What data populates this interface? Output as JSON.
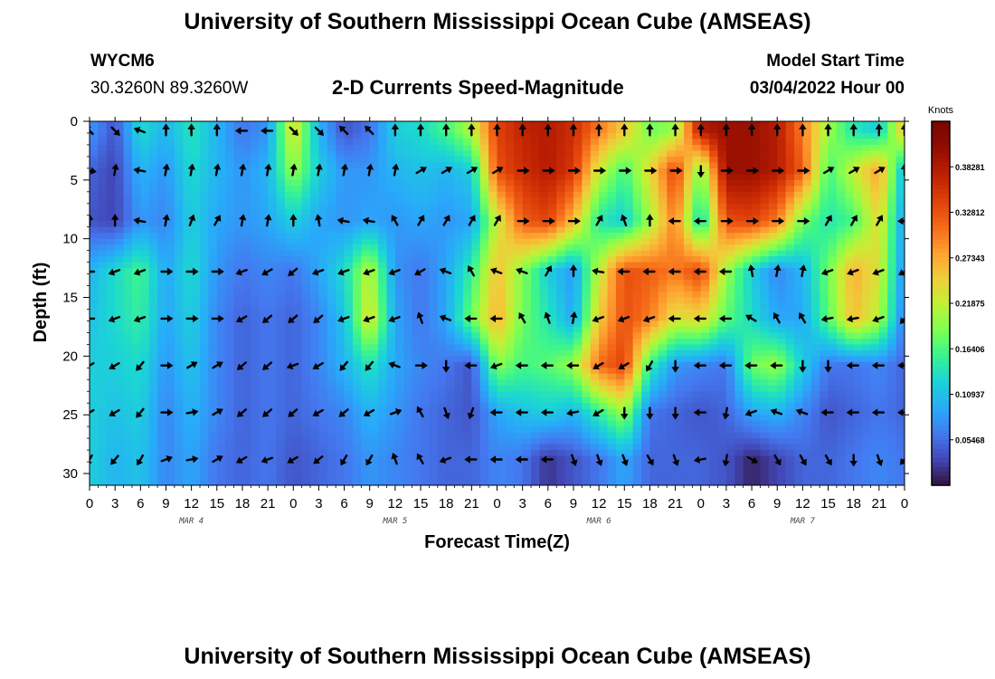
{
  "header": {
    "title": "University of Southern Mississippi Ocean Cube (AMSEAS)",
    "station": "WYCM6",
    "coords": "30.3260N  89.3260W",
    "subtitle": "2-D Currents Speed-Magnitude",
    "model_label": "Model Start Time",
    "model_time": "03/04/2022 Hour 00"
  },
  "footer": {
    "title": "University of Southern Mississippi Ocean Cube (AMSEAS)"
  },
  "chart_data": {
    "type": "heatmap",
    "title": "2-D Currents Speed-Magnitude",
    "xlabel": "Forecast Time(Z)",
    "ylabel": "Depth (ft)",
    "colorbar_label": "Knots",
    "colorbar_ticks": [
      "0.05468",
      "0.10937",
      "0.16406",
      "0.21875",
      "0.27343",
      "0.32812",
      "0.38281"
    ],
    "colorbar_range": [
      0,
      0.4375
    ],
    "xlim": [
      0,
      96
    ],
    "ylim": [
      0,
      31
    ],
    "x_ticks": [
      0,
      3,
      6,
      9,
      12,
      15,
      18,
      21,
      24,
      27,
      30,
      33,
      36,
      39,
      42,
      45,
      48,
      51,
      54,
      57,
      60,
      63,
      66,
      69,
      72,
      75,
      78,
      81,
      84,
      87,
      90,
      93,
      96
    ],
    "x_tick_labels": [
      "0",
      "3",
      "6",
      "9",
      "12",
      "15",
      "18",
      "21",
      "0",
      "3",
      "6",
      "9",
      "12",
      "15",
      "18",
      "21",
      "0",
      "3",
      "6",
      "9",
      "12",
      "15",
      "18",
      "21",
      "0",
      "3",
      "6",
      "9",
      "12",
      "15",
      "18",
      "21",
      "0"
    ],
    "y_ticks": [
      0,
      5,
      10,
      15,
      20,
      25,
      30
    ],
    "day_labels": [
      {
        "hour": 12,
        "label": "MAR 4"
      },
      {
        "hour": 36,
        "label": "MAR 5"
      },
      {
        "hour": 60,
        "label": "MAR 6"
      },
      {
        "hour": 84,
        "label": "MAR 7"
      }
    ],
    "depth_levels": [
      0.8,
      4.2,
      8.5,
      12.8,
      16.8,
      20.8,
      24.8,
      28.8
    ],
    "time_columns": [
      0,
      3,
      6,
      9,
      12,
      15,
      18,
      21,
      24,
      27,
      30,
      33,
      36,
      39,
      42,
      45,
      48,
      51,
      54,
      57,
      60,
      63,
      66,
      69,
      72,
      75,
      78,
      81,
      84,
      87,
      90,
      93,
      96
    ],
    "speed_grid": [
      [
        0.08,
        0.04,
        0.13,
        0.1,
        0.14,
        0.1,
        0.06,
        0.08,
        0.24,
        0.1,
        0.04,
        0.06,
        0.12,
        0.13,
        0.16,
        0.21,
        0.34,
        0.37,
        0.38,
        0.36,
        0.3,
        0.25,
        0.18,
        0.2,
        0.38,
        0.4,
        0.4,
        0.38,
        0.3,
        0.2,
        0.14,
        0.12,
        0.26
      ],
      [
        0.05,
        0.03,
        0.1,
        0.08,
        0.13,
        0.1,
        0.08,
        0.1,
        0.2,
        0.12,
        0.08,
        0.08,
        0.1,
        0.11,
        0.1,
        0.12,
        0.33,
        0.36,
        0.38,
        0.35,
        0.22,
        0.16,
        0.24,
        0.34,
        0.18,
        0.4,
        0.4,
        0.38,
        0.32,
        0.16,
        0.22,
        0.28,
        0.1
      ],
      [
        0.04,
        0.03,
        0.08,
        0.07,
        0.12,
        0.09,
        0.08,
        0.09,
        0.12,
        0.09,
        0.08,
        0.09,
        0.08,
        0.09,
        0.08,
        0.09,
        0.22,
        0.32,
        0.34,
        0.26,
        0.14,
        0.12,
        0.2,
        0.3,
        0.12,
        0.33,
        0.34,
        0.3,
        0.18,
        0.14,
        0.16,
        0.24,
        0.08
      ],
      [
        0.1,
        0.13,
        0.16,
        0.09,
        0.13,
        0.08,
        0.06,
        0.07,
        0.06,
        0.09,
        0.13,
        0.22,
        0.08,
        0.06,
        0.09,
        0.15,
        0.26,
        0.19,
        0.12,
        0.08,
        0.22,
        0.33,
        0.32,
        0.3,
        0.34,
        0.2,
        0.12,
        0.07,
        0.1,
        0.18,
        0.27,
        0.23,
        0.07
      ],
      [
        0.11,
        0.13,
        0.15,
        0.09,
        0.12,
        0.07,
        0.05,
        0.06,
        0.05,
        0.07,
        0.11,
        0.24,
        0.09,
        0.06,
        0.09,
        0.18,
        0.27,
        0.18,
        0.14,
        0.09,
        0.25,
        0.33,
        0.3,
        0.23,
        0.24,
        0.17,
        0.13,
        0.09,
        0.09,
        0.17,
        0.26,
        0.21,
        0.06
      ],
      [
        0.12,
        0.12,
        0.13,
        0.08,
        0.11,
        0.07,
        0.05,
        0.06,
        0.05,
        0.07,
        0.1,
        0.14,
        0.09,
        0.07,
        0.06,
        0.04,
        0.19,
        0.16,
        0.17,
        0.2,
        0.31,
        0.34,
        0.15,
        0.08,
        0.07,
        0.06,
        0.18,
        0.2,
        0.12,
        0.06,
        0.06,
        0.07,
        0.05
      ],
      [
        0.12,
        0.11,
        0.12,
        0.07,
        0.1,
        0.07,
        0.05,
        0.06,
        0.05,
        0.06,
        0.07,
        0.1,
        0.08,
        0.06,
        0.05,
        0.04,
        0.09,
        0.11,
        0.12,
        0.1,
        0.15,
        0.2,
        0.06,
        0.05,
        0.04,
        0.05,
        0.09,
        0.1,
        0.07,
        0.04,
        0.05,
        0.06,
        0.05
      ],
      [
        0.12,
        0.1,
        0.11,
        0.07,
        0.09,
        0.06,
        0.05,
        0.06,
        0.04,
        0.05,
        0.06,
        0.08,
        0.07,
        0.06,
        0.05,
        0.05,
        0.07,
        0.06,
        0.02,
        0.04,
        0.06,
        0.09,
        0.05,
        0.05,
        0.05,
        0.04,
        0.01,
        0.03,
        0.05,
        0.05,
        0.06,
        0.07,
        0.06
      ]
    ],
    "arrow_columns": [
      0,
      3,
      6,
      9,
      12,
      15,
      18,
      21,
      24,
      27,
      30,
      33,
      36,
      39,
      42,
      45,
      48,
      51,
      54,
      57,
      60,
      63,
      66,
      69,
      72,
      75,
      78,
      81,
      84,
      87,
      90,
      93,
      96
    ],
    "arrow_direction_deg": [
      [
        135,
        315,
        160,
        90,
        90,
        90,
        180,
        180,
        315,
        315,
        135,
        135,
        90,
        90,
        90,
        90,
        90,
        90,
        90,
        90,
        90,
        90,
        90,
        90,
        90,
        90,
        90,
        90,
        90,
        90,
        90,
        90,
        90
      ],
      [
        350,
        80,
        170,
        80,
        80,
        80,
        80,
        80,
        80,
        80,
        80,
        80,
        80,
        30,
        30,
        30,
        30,
        0,
        0,
        0,
        0,
        0,
        0,
        0,
        270,
        0,
        0,
        0,
        0,
        30,
        30,
        30,
        90
      ],
      [
        90,
        90,
        170,
        80,
        70,
        60,
        80,
        80,
        90,
        100,
        170,
        170,
        120,
        60,
        60,
        60,
        60,
        0,
        0,
        0,
        60,
        110,
        90,
        180,
        180,
        0,
        0,
        0,
        0,
        60,
        60,
        60,
        180
      ],
      [
        180,
        200,
        200,
        0,
        0,
        0,
        200,
        210,
        220,
        200,
        200,
        200,
        200,
        210,
        160,
        120,
        160,
        160,
        60,
        90,
        170,
        180,
        180,
        180,
        180,
        180,
        100,
        80,
        80,
        200,
        200,
        200,
        210
      ],
      [
        180,
        200,
        200,
        0,
        0,
        0,
        210,
        220,
        220,
        220,
        200,
        200,
        200,
        110,
        160,
        180,
        180,
        120,
        110,
        80,
        200,
        200,
        200,
        180,
        180,
        180,
        150,
        120,
        120,
        190,
        190,
        200,
        230
      ],
      [
        210,
        210,
        230,
        0,
        30,
        30,
        220,
        220,
        200,
        210,
        230,
        230,
        160,
        0,
        270,
        180,
        200,
        180,
        180,
        180,
        210,
        210,
        240,
        270,
        180,
        180,
        180,
        180,
        270,
        270,
        180,
        180,
        180
      ],
      [
        210,
        210,
        230,
        0,
        10,
        30,
        220,
        220,
        220,
        210,
        220,
        210,
        20,
        120,
        290,
        250,
        180,
        180,
        180,
        190,
        210,
        270,
        270,
        270,
        180,
        260,
        200,
        160,
        160,
        180,
        180,
        180,
        180
      ],
      [
        240,
        230,
        240,
        20,
        10,
        30,
        210,
        200,
        210,
        220,
        240,
        240,
        110,
        120,
        200,
        180,
        180,
        180,
        180,
        290,
        290,
        290,
        300,
        290,
        190,
        260,
        330,
        300,
        300,
        300,
        270,
        290,
        230
      ]
    ]
  }
}
